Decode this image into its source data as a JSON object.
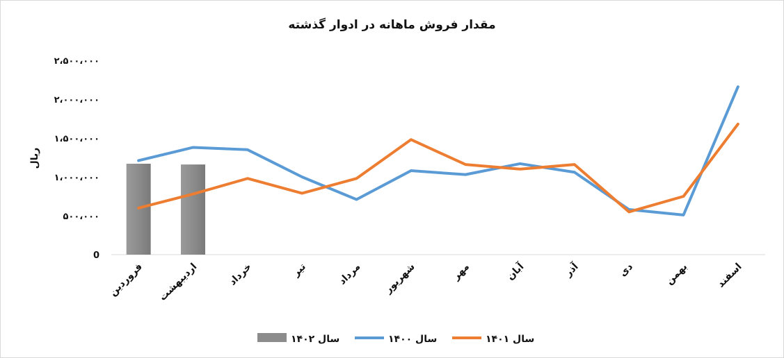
{
  "chart_data": {
    "type": "line",
    "title": "مقدار فروش ماهانه در ادوار گذشته",
    "ylabel": "ریال",
    "categories": [
      "فروردین",
      "اردیبهشت",
      "خرداد",
      "تیر",
      "مرداد",
      "شهریور",
      "مهر",
      "آبان",
      "آذر",
      "دی",
      "بهمن",
      "اسفند"
    ],
    "y_ticks": [
      0,
      500000,
      1000000,
      1500000,
      2000000,
      2500000
    ],
    "y_tick_labels": [
      "0",
      "۵۰۰،۰۰۰",
      "۱،۰۰۰،۰۰۰",
      "۱،۵۰۰،۰۰۰",
      "۲،۰۰۰،۰۰۰",
      "۲،۵۰۰،۰۰۰"
    ],
    "ylim": [
      0,
      2500000
    ],
    "grid": false,
    "legend_position": "bottom",
    "series": [
      {
        "name": "سال ۱۴۰۲",
        "kind": "bar",
        "color": "#8c8c8c",
        "values": [
          1170000,
          1160000,
          null,
          null,
          null,
          null,
          null,
          null,
          null,
          null,
          null,
          null
        ]
      },
      {
        "name": "سال ۱۴۰۰",
        "kind": "line",
        "color": "#5b9bd5",
        "values": [
          1210000,
          1380000,
          1350000,
          1000000,
          710000,
          1080000,
          1030000,
          1170000,
          1060000,
          580000,
          510000,
          2160000
        ]
      },
      {
        "name": "سال ۱۴۰۱",
        "kind": "line",
        "color": "#ed7d31",
        "values": [
          600000,
          780000,
          980000,
          790000,
          980000,
          1480000,
          1160000,
          1100000,
          1160000,
          550000,
          750000,
          1680000
        ]
      }
    ]
  }
}
